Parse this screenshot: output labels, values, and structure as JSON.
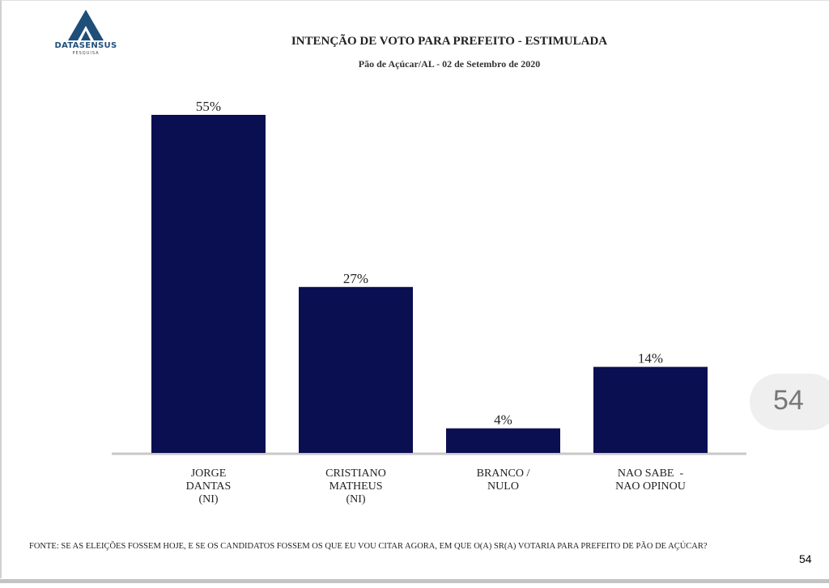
{
  "logo": {
    "name": "DATASENSUS",
    "tagline": "PESQUISA"
  },
  "page_number": "54",
  "side_tab_number": "54",
  "source_note": "FONTE: SE AS ELEIÇÕES FOSSEM HOJE, E SE OS CANDIDATOS FOSSEM OS QUE EU VOU CITAR AGORA, EM QUE O(A) SR(A) VOTARIA PARA PREFEITO DE PÃO DE AÇÚCAR?",
  "chart_data": {
    "type": "bar",
    "title": "INTENÇÃO DE VOTO PARA PREFEITO - ESTIMULADA",
    "subtitle": "Pão de Açúcar/AL - 02 de Setembro de 2020",
    "categories": [
      [
        "JORGE",
        "DANTAS",
        "(NI)"
      ],
      [
        "CRISTIANO",
        "MATHEUS",
        "(NI)"
      ],
      [
        "BRANCO /",
        "NULO"
      ],
      [
        "NAO SABE  -",
        "NAO OPINOU"
      ]
    ],
    "values": [
      55,
      27,
      4,
      14
    ],
    "value_labels": [
      "55%",
      "27%",
      "4%",
      "14%"
    ],
    "ylim": [
      0,
      55
    ],
    "grid": false,
    "bar_color": "#0a0f52"
  }
}
